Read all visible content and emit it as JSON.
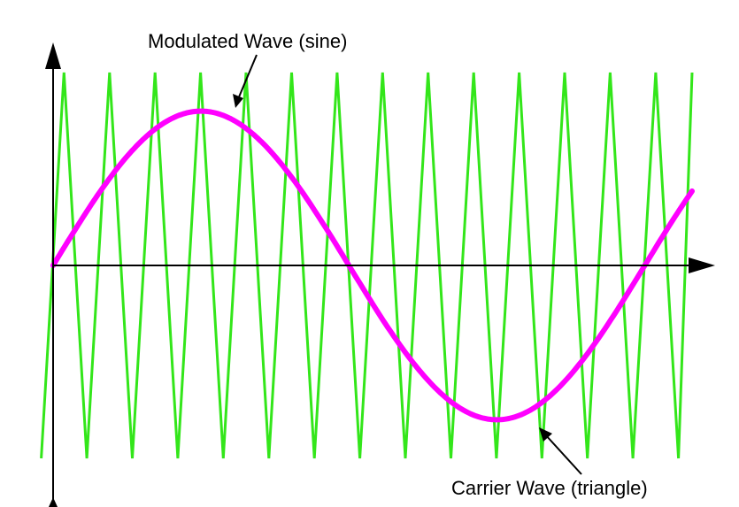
{
  "labels": {
    "modulated": "Modulated Wave (sine)",
    "carrier": "Carrier Wave (triangle)"
  },
  "chart_data": {
    "type": "line",
    "title": "",
    "xlabel": "",
    "ylabel": "",
    "grid": false,
    "xlim": [
      0,
      1.08
    ],
    "ylim": [
      -1.25,
      1.25
    ],
    "series": [
      {
        "name": "Modulated Wave (sine)",
        "color": "#ff00ff",
        "function": "sine",
        "amplitude": 0.8,
        "x_start": 0.0,
        "x_end": 1.08
      },
      {
        "name": "Carrier Wave (triangle)",
        "color": "#00ee00",
        "function": "triangle",
        "amplitude": 1.0,
        "cycles": 13,
        "x_start": -0.02,
        "x_end": 1.08
      }
    ]
  }
}
